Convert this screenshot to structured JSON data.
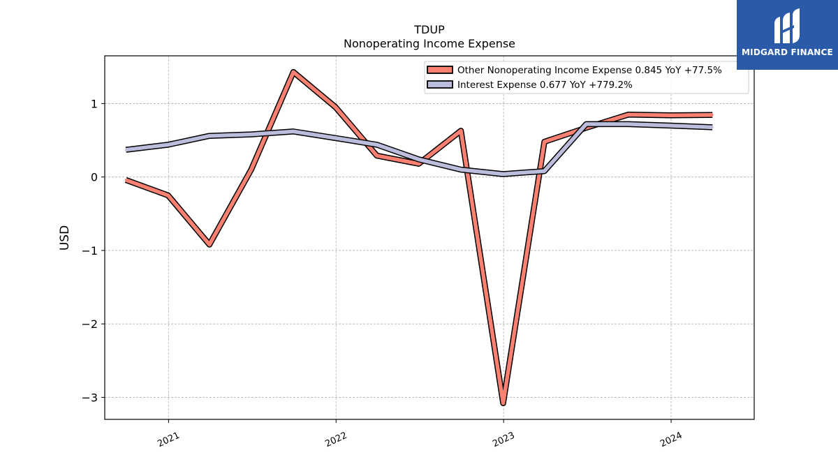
{
  "chart_data": {
    "type": "line",
    "title": "TDUP",
    "subtitle": "Nonoperating Income Expense",
    "ylabel": "USD",
    "xlabel": "",
    "xlim": [
      "2020-08-15",
      "2024-06-30"
    ],
    "ylim": [
      -3.3,
      1.65
    ],
    "x_ticks": [
      "2021-01-01",
      "2022-01-01",
      "2023-01-01",
      "2024-01-01"
    ],
    "x_tick_labels": [
      "2021",
      "2022",
      "2023",
      "2024"
    ],
    "y_ticks": [
      1,
      0,
      -1,
      -2,
      -3
    ],
    "y_tick_labels": [
      "1",
      "0",
      "−1",
      "−2",
      "−3"
    ],
    "grid": true,
    "legend_position": "top-right",
    "x": [
      "2020-09-30",
      "2020-12-31",
      "2021-03-31",
      "2021-06-30",
      "2021-09-30",
      "2021-12-31",
      "2022-03-31",
      "2022-06-30",
      "2022-09-30",
      "2022-12-31",
      "2023-03-31",
      "2023-06-30",
      "2023-09-30",
      "2023-12-31",
      "2024-03-31"
    ],
    "series": [
      {
        "name": "Other Nonoperating Income Expense  0.845 YoY +77.5%",
        "color": "#fa8072",
        "values": [
          -0.04,
          -0.25,
          -0.92,
          0.1,
          1.43,
          0.95,
          0.29,
          0.18,
          0.63,
          -3.08,
          0.48,
          0.67,
          0.85,
          0.84,
          0.845
        ]
      },
      {
        "name": "Interest Expense  0.677 YoY +779.2%",
        "color": "#bcbddc",
        "values": [
          0.37,
          0.44,
          0.56,
          0.58,
          0.62,
          0.53,
          0.44,
          0.24,
          0.1,
          0.04,
          0.08,
          0.72,
          0.72,
          0.7,
          0.677
        ]
      }
    ]
  },
  "logo": {
    "text": "MIDGARD FINANCE"
  }
}
